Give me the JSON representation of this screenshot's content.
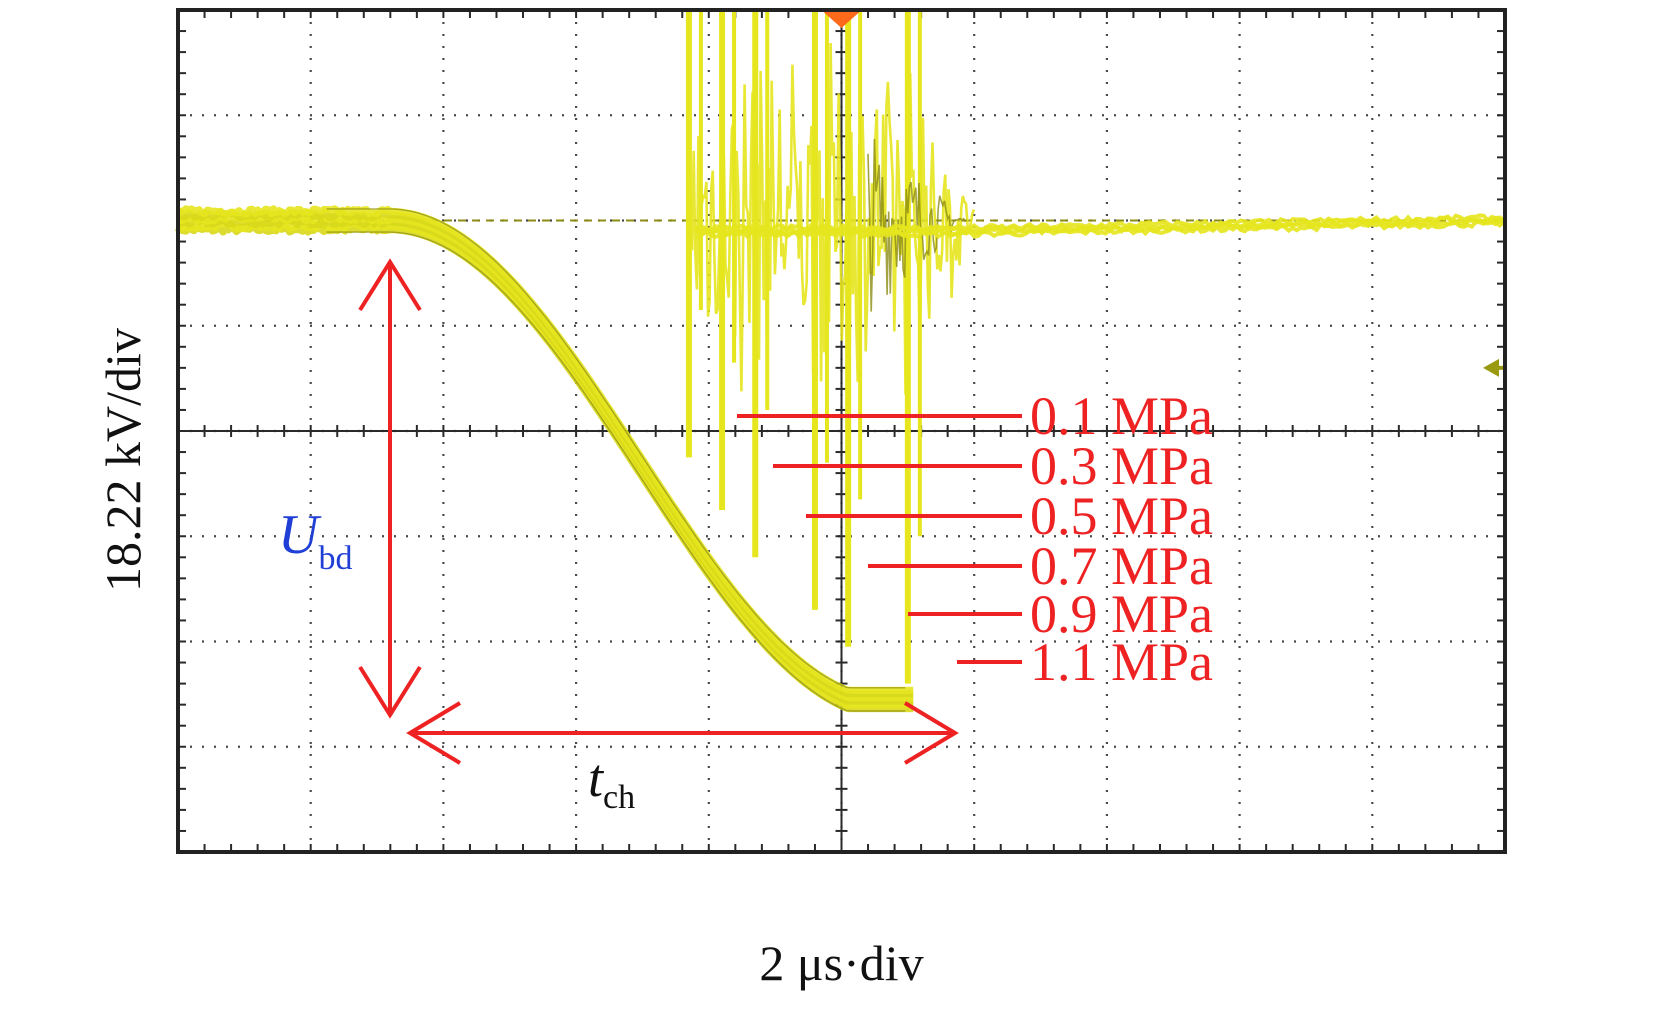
{
  "chart_data": {
    "type": "line",
    "instrument": "oscilloscope",
    "xlabel": "2 μs·div",
    "ylabel": "18.22 kV/div",
    "x_divisions": 10,
    "y_divisions": 8,
    "xlim": [
      0,
      10
    ],
    "ylim": [
      -4,
      4
    ],
    "grid": true,
    "colors": {
      "trace": "#e6e61e",
      "trace_dark": "#8c8c14",
      "grid": "#2a2a2a",
      "frame": "#222222",
      "annotation": "#ee2222",
      "ubd_label": "#1f3fd6",
      "trigger_marker": "#ff6a1a",
      "level_marker": "#9a9a10"
    },
    "baseline": 2.0,
    "fall_start_x": 1.6,
    "series": [
      {
        "name": "0.1 MPa",
        "breakdown_x": 3.85,
        "breakdown_y": -0.25
      },
      {
        "name": "0.3 MPa",
        "breakdown_x": 4.1,
        "breakdown_y": -0.75
      },
      {
        "name": "0.5 MPa",
        "breakdown_x": 4.35,
        "breakdown_y": -1.2
      },
      {
        "name": "0.7 MPa",
        "breakdown_x": 4.8,
        "breakdown_y": -1.7
      },
      {
        "name": "0.9 MPa",
        "breakdown_x": 5.05,
        "breakdown_y": -2.05
      },
      {
        "name": "1.1 MPa",
        "breakdown_x": 5.5,
        "breakdown_y": -2.4
      }
    ],
    "annotations": {
      "ubd": {
        "symbol": "U",
        "subscript": "bd"
      },
      "tch": {
        "symbol": "t",
        "subscript": "ch"
      }
    }
  }
}
